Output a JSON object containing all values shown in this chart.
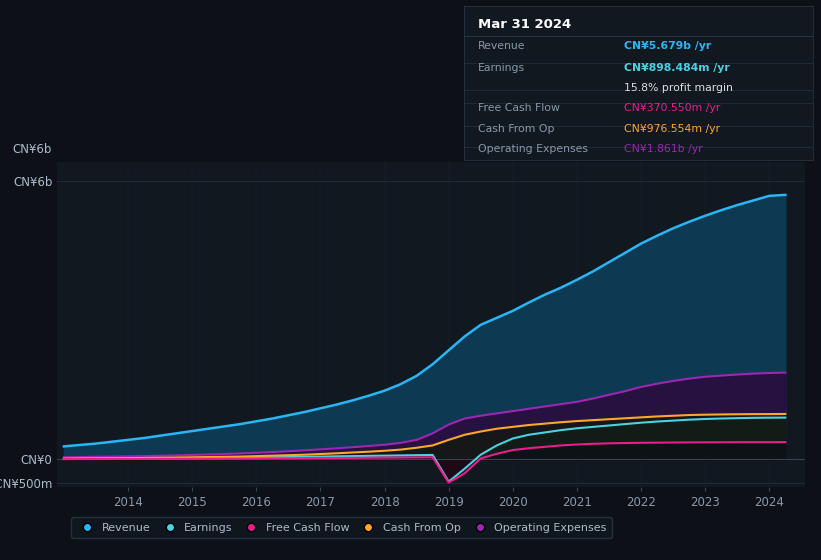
{
  "background_color": "#0d1117",
  "plot_bg_color": "#111820",
  "years": [
    2013.0,
    2013.25,
    2013.5,
    2013.75,
    2014.0,
    2014.25,
    2014.5,
    2014.75,
    2015.0,
    2015.25,
    2015.5,
    2015.75,
    2016.0,
    2016.25,
    2016.5,
    2016.75,
    2017.0,
    2017.25,
    2017.5,
    2017.75,
    2018.0,
    2018.25,
    2018.5,
    2018.75,
    2019.0,
    2019.25,
    2019.5,
    2019.75,
    2020.0,
    2020.25,
    2020.5,
    2020.75,
    2021.0,
    2021.25,
    2021.5,
    2021.75,
    2022.0,
    2022.25,
    2022.5,
    2022.75,
    2023.0,
    2023.25,
    2023.5,
    2023.75,
    2024.0,
    2024.25
  ],
  "revenue": [
    280,
    310,
    340,
    380,
    420,
    460,
    510,
    560,
    610,
    660,
    710,
    760,
    820,
    880,
    950,
    1020,
    1100,
    1180,
    1270,
    1370,
    1480,
    1620,
    1800,
    2050,
    2350,
    2650,
    2900,
    3050,
    3200,
    3380,
    3550,
    3700,
    3870,
    4050,
    4250,
    4450,
    4650,
    4820,
    4980,
    5120,
    5250,
    5370,
    5480,
    5580,
    5679,
    5700
  ],
  "earnings": [
    10,
    12,
    14,
    16,
    18,
    20,
    22,
    25,
    28,
    30,
    33,
    36,
    40,
    45,
    50,
    55,
    60,
    65,
    70,
    75,
    80,
    85,
    90,
    95,
    -480,
    -200,
    100,
    300,
    450,
    530,
    580,
    630,
    670,
    700,
    730,
    760,
    790,
    815,
    835,
    855,
    870,
    880,
    888,
    895,
    898,
    900
  ],
  "free_cash_flow": [
    5,
    6,
    7,
    8,
    9,
    10,
    11,
    12,
    13,
    14,
    15,
    16,
    18,
    20,
    22,
    25,
    28,
    30,
    32,
    35,
    38,
    40,
    42,
    45,
    -500,
    -300,
    20,
    120,
    200,
    240,
    270,
    300,
    320,
    335,
    345,
    352,
    357,
    360,
    363,
    365,
    367,
    368,
    369,
    370,
    370,
    371
  ],
  "cash_from_op": [
    15,
    18,
    20,
    23,
    26,
    30,
    35,
    40,
    45,
    50,
    55,
    60,
    70,
    80,
    90,
    100,
    115,
    130,
    148,
    165,
    185,
    210,
    250,
    300,
    420,
    530,
    600,
    660,
    700,
    740,
    770,
    800,
    825,
    845,
    865,
    885,
    905,
    925,
    940,
    955,
    963,
    968,
    972,
    975,
    976,
    978
  ],
  "operating_expenses": [
    45,
    50,
    55,
    60,
    65,
    70,
    78,
    86,
    95,
    105,
    115,
    128,
    142,
    158,
    175,
    195,
    215,
    238,
    262,
    288,
    315,
    355,
    420,
    560,
    750,
    880,
    940,
    990,
    1040,
    1090,
    1140,
    1190,
    1240,
    1310,
    1390,
    1470,
    1560,
    1630,
    1690,
    1740,
    1780,
    1805,
    1828,
    1848,
    1861,
    1870
  ],
  "revenue_color": "#29b6f6",
  "earnings_color": "#4dd0e1",
  "free_cash_flow_color": "#e91e8c",
  "cash_from_op_color": "#ffa726",
  "operating_expenses_color": "#9c27b0",
  "revenue_fill": "#0d3a52",
  "op_exp_fill": "#2a0d40",
  "earnings_fill_pos": "#0d2535",
  "cash_fill": "#1a2a0d",
  "fcf_fill_neg": "#200a15",
  "ylim_min": -600,
  "ylim_max": 6400,
  "xtick_years": [
    2014,
    2015,
    2016,
    2017,
    2018,
    2019,
    2020,
    2021,
    2022,
    2023,
    2024
  ],
  "ytick_vals": [
    -500,
    0,
    6000
  ],
  "ytick_labels": [
    "-CN¥500m",
    "CN¥0",
    "CN¥6b"
  ],
  "grid_color": "#1e2d3d",
  "text_color": "#8899aa",
  "tick_label_color": "#aabbcc",
  "info_box_color": "#111820",
  "info_box_border": "#2a3a4a",
  "info_title": "Mar 31 2024",
  "info_rows": [
    {
      "label": "Revenue",
      "value": "CN¥5.679b /yr",
      "color": "#29b6f6",
      "bold": true
    },
    {
      "label": "Earnings",
      "value": "CN¥898.484m /yr",
      "color": "#4dd0e1",
      "bold": true
    },
    {
      "label": "",
      "value": "15.8% profit margin",
      "color": "#dddddd",
      "bold": false
    },
    {
      "label": "Free Cash Flow",
      "value": "CN¥370.550m /yr",
      "color": "#e91e8c",
      "bold": false
    },
    {
      "label": "Cash From Op",
      "value": "CN¥976.554m /yr",
      "color": "#ffa726",
      "bold": false
    },
    {
      "label": "Operating Expenses",
      "value": "CN¥1.861b /yr",
      "color": "#9c27b0",
      "bold": false
    }
  ],
  "legend_items": [
    {
      "label": "Revenue",
      "color": "#29b6f6"
    },
    {
      "label": "Earnings",
      "color": "#4dd0e1"
    },
    {
      "label": "Free Cash Flow",
      "color": "#e91e8c"
    },
    {
      "label": "Cash From Op",
      "color": "#ffa726"
    },
    {
      "label": "Operating Expenses",
      "color": "#9c27b0"
    }
  ]
}
